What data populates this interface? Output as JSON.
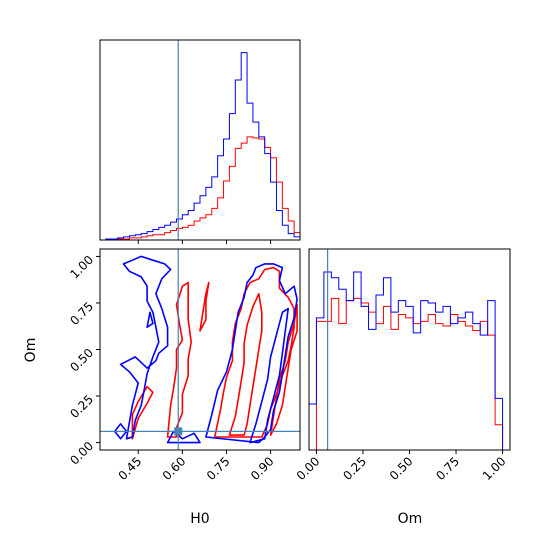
{
  "chart_data": {
    "type": "corner",
    "parameters": [
      "H0",
      "Om"
    ],
    "truths": {
      "H0": 0.586,
      "Om": 0.06
    },
    "colors": {
      "red": "#ff0000",
      "blue": "#0000ff",
      "truth": "#4682b4"
    },
    "axes": {
      "H0": {
        "label": "H0",
        "range": [
          0.32,
          1.0
        ],
        "ticks": [
          "0.45",
          "0.60",
          "0.75",
          "0.90"
        ],
        "tick_values": [
          0.45,
          0.6,
          0.75,
          0.9
        ]
      },
      "Om": {
        "label": "Om",
        "range": [
          -0.04,
          1.04
        ],
        "ticks": [
          "0.00",
          "0.25",
          "0.50",
          "0.75",
          "1.00"
        ],
        "tick_values": [
          0.0,
          0.25,
          0.5,
          0.75,
          1.0
        ]
      }
    },
    "hist_H0": {
      "bin_edges": [
        0.32,
        0.34,
        0.36,
        0.38,
        0.4,
        0.42,
        0.44,
        0.46,
        0.48,
        0.5,
        0.52,
        0.54,
        0.56,
        0.58,
        0.6,
        0.62,
        0.64,
        0.66,
        0.68,
        0.7,
        0.72,
        0.74,
        0.76,
        0.78,
        0.8,
        0.82,
        0.84,
        0.86,
        0.88,
        0.9,
        0.92,
        0.94,
        0.96,
        0.98,
        1.0
      ],
      "ylim": [
        0,
        190
      ],
      "series": [
        {
          "color": "red",
          "counts": [
            0,
            0,
            1,
            1,
            1,
            2,
            2,
            3,
            4,
            5,
            5,
            7,
            9,
            11,
            12,
            14,
            18,
            21,
            24,
            30,
            40,
            56,
            70,
            87,
            92,
            98,
            97,
            96,
            88,
            78,
            55,
            30,
            18,
            7
          ]
        },
        {
          "color": "blue",
          "counts": [
            0,
            1,
            1,
            2,
            3,
            4,
            5,
            6,
            8,
            10,
            12,
            14,
            17,
            20,
            24,
            28,
            35,
            42,
            50,
            60,
            80,
            96,
            120,
            152,
            178,
            130,
            112,
            98,
            82,
            55,
            28,
            14,
            6,
            3
          ]
        }
      ]
    },
    "hist_Om": {
      "bin_edges": [
        -0.04,
        0.0,
        0.04,
        0.08,
        0.12,
        0.16,
        0.2,
        0.24,
        0.28,
        0.32,
        0.36,
        0.4,
        0.44,
        0.48,
        0.52,
        0.56,
        0.6,
        0.64,
        0.68,
        0.72,
        0.76,
        0.8,
        0.84,
        0.88,
        0.92,
        0.96,
        1.0,
        1.04
      ],
      "ylim": [
        0,
        175
      ],
      "series": [
        {
          "color": "red",
          "counts": [
            0,
            112,
            112,
            132,
            110,
            130,
            132,
            128,
            120,
            110,
            125,
            105,
            118,
            115,
            110,
            112,
            118,
            110,
            108,
            118,
            112,
            108,
            104,
            112,
            100,
            22,
            0
          ]
        },
        {
          "color": "blue",
          "counts": [
            40,
            115,
            155,
            150,
            140,
            130,
            155,
            125,
            105,
            135,
            150,
            120,
            130,
            125,
            102,
            130,
            128,
            120,
            125,
            110,
            115,
            120,
            110,
            100,
            130,
            45,
            0
          ]
        }
      ]
    },
    "contours": [
      {
        "color": "red",
        "points": [
          [
            0.43,
            0.02
          ],
          [
            0.45,
            0.13
          ],
          [
            0.48,
            0.21
          ],
          [
            0.5,
            0.27
          ],
          [
            0.48,
            0.3
          ],
          [
            0.45,
            0.22
          ],
          [
            0.43,
            0.15
          ],
          [
            0.43,
            0.02
          ]
        ]
      },
      {
        "color": "red",
        "points": [
          [
            0.55,
            0.03
          ],
          [
            0.56,
            0.2
          ],
          [
            0.57,
            0.29
          ],
          [
            0.58,
            0.4
          ],
          [
            0.58,
            0.5
          ],
          [
            0.6,
            0.55
          ],
          [
            0.59,
            0.64
          ],
          [
            0.58,
            0.74
          ],
          [
            0.6,
            0.84
          ],
          [
            0.62,
            0.86
          ],
          [
            0.62,
            0.76
          ],
          [
            0.62,
            0.66
          ],
          [
            0.63,
            0.54
          ],
          [
            0.62,
            0.45
          ],
          [
            0.62,
            0.36
          ],
          [
            0.6,
            0.26
          ],
          [
            0.6,
            0.16
          ],
          [
            0.58,
            0.08
          ],
          [
            0.58,
            0.03
          ],
          [
            0.55,
            0.03
          ]
        ]
      },
      {
        "color": "red",
        "points": [
          [
            0.66,
            0.6
          ],
          [
            0.67,
            0.7
          ],
          [
            0.68,
            0.8
          ],
          [
            0.69,
            0.86
          ],
          [
            0.68,
            0.76
          ],
          [
            0.68,
            0.66
          ],
          [
            0.66,
            0.6
          ]
        ]
      },
      {
        "color": "red",
        "points": [
          [
            0.71,
            0.03
          ],
          [
            0.73,
            0.18
          ],
          [
            0.74,
            0.27
          ],
          [
            0.75,
            0.35
          ],
          [
            0.77,
            0.44
          ],
          [
            0.77,
            0.54
          ],
          [
            0.78,
            0.64
          ],
          [
            0.8,
            0.72
          ],
          [
            0.81,
            0.8
          ],
          [
            0.83,
            0.86
          ],
          [
            0.86,
            0.88
          ],
          [
            0.88,
            0.93
          ],
          [
            0.91,
            0.94
          ],
          [
            0.93,
            0.92
          ],
          [
            0.93,
            0.83
          ],
          [
            0.96,
            0.78
          ],
          [
            0.98,
            0.72
          ],
          [
            0.98,
            0.62
          ],
          [
            0.97,
            0.52
          ],
          [
            0.96,
            0.44
          ],
          [
            0.94,
            0.36
          ],
          [
            0.92,
            0.26
          ],
          [
            0.9,
            0.18
          ],
          [
            0.89,
            0.1
          ],
          [
            0.87,
            0.03
          ],
          [
            0.71,
            0.03
          ]
        ]
      },
      {
        "color": "red",
        "points": [
          [
            0.76,
            0.04
          ],
          [
            0.78,
            0.14
          ],
          [
            0.79,
            0.23
          ],
          [
            0.8,
            0.33
          ],
          [
            0.81,
            0.43
          ],
          [
            0.81,
            0.53
          ],
          [
            0.82,
            0.63
          ],
          [
            0.84,
            0.73
          ],
          [
            0.86,
            0.8
          ],
          [
            0.87,
            0.7
          ],
          [
            0.87,
            0.6
          ],
          [
            0.86,
            0.5
          ],
          [
            0.85,
            0.4
          ],
          [
            0.84,
            0.3
          ],
          [
            0.83,
            0.2
          ],
          [
            0.82,
            0.1
          ],
          [
            0.81,
            0.04
          ],
          [
            0.76,
            0.04
          ]
        ]
      },
      {
        "color": "red",
        "points": [
          [
            0.9,
            0.04
          ],
          [
            0.91,
            0.14
          ],
          [
            0.92,
            0.24
          ],
          [
            0.93,
            0.34
          ],
          [
            0.95,
            0.44
          ],
          [
            0.96,
            0.54
          ],
          [
            0.98,
            0.64
          ],
          [
            0.99,
            0.74
          ],
          [
            0.99,
            0.6
          ],
          [
            0.97,
            0.5
          ],
          [
            0.96,
            0.4
          ],
          [
            0.95,
            0.3
          ],
          [
            0.94,
            0.2
          ],
          [
            0.92,
            0.1
          ],
          [
            0.9,
            0.04
          ]
        ]
      },
      {
        "color": "blue",
        "points": [
          [
            0.37,
            0.06
          ],
          [
            0.39,
            0.02
          ],
          [
            0.41,
            0.06
          ],
          [
            0.39,
            0.1
          ],
          [
            0.37,
            0.06
          ]
        ]
      },
      {
        "color": "blue",
        "points": [
          [
            0.41,
            0.02
          ],
          [
            0.43,
            0.2
          ],
          [
            0.45,
            0.32
          ],
          [
            0.42,
            0.38
          ],
          [
            0.39,
            0.42
          ],
          [
            0.44,
            0.46
          ],
          [
            0.48,
            0.4
          ],
          [
            0.51,
            0.44
          ],
          [
            0.52,
            0.48
          ],
          [
            0.55,
            0.52
          ],
          [
            0.55,
            0.62
          ],
          [
            0.53,
            0.72
          ],
          [
            0.51,
            0.8
          ],
          [
            0.53,
            0.88
          ],
          [
            0.56,
            0.93
          ],
          [
            0.54,
            0.96
          ],
          [
            0.5,
            0.98
          ],
          [
            0.46,
            1.0
          ],
          [
            0.43,
            0.98
          ],
          [
            0.4,
            0.96
          ],
          [
            0.42,
            0.92
          ],
          [
            0.46,
            0.89
          ],
          [
            0.48,
            0.84
          ],
          [
            0.48,
            0.76
          ],
          [
            0.5,
            0.7
          ],
          [
            0.51,
            0.62
          ],
          [
            0.52,
            0.54
          ],
          [
            0.5,
            0.46
          ],
          [
            0.48,
            0.37
          ],
          [
            0.47,
            0.28
          ],
          [
            0.46,
            0.2
          ],
          [
            0.44,
            0.12
          ],
          [
            0.43,
            0.03
          ],
          [
            0.41,
            0.02
          ]
        ]
      },
      {
        "color": "blue",
        "points": [
          [
            0.48,
            0.62
          ],
          [
            0.49,
            0.7
          ],
          [
            0.5,
            0.64
          ],
          [
            0.48,
            0.62
          ]
        ]
      },
      {
        "color": "blue",
        "points": [
          [
            0.55,
            0.0
          ],
          [
            0.57,
            0.06
          ],
          [
            0.6,
            0.02
          ],
          [
            0.64,
            0.05
          ],
          [
            0.66,
            0.0
          ],
          [
            0.55,
            0.0
          ]
        ]
      },
      {
        "color": "blue",
        "points": [
          [
            0.68,
            0.03
          ],
          [
            0.7,
            0.15
          ],
          [
            0.72,
            0.28
          ],
          [
            0.75,
            0.38
          ],
          [
            0.77,
            0.5
          ],
          [
            0.78,
            0.6
          ],
          [
            0.79,
            0.7
          ],
          [
            0.81,
            0.78
          ],
          [
            0.82,
            0.86
          ],
          [
            0.84,
            0.9
          ],
          [
            0.85,
            0.94
          ],
          [
            0.88,
            0.96
          ],
          [
            0.91,
            0.96
          ],
          [
            0.94,
            0.94
          ],
          [
            0.93,
            0.87
          ],
          [
            0.95,
            0.8
          ],
          [
            0.98,
            0.84
          ],
          [
            0.99,
            0.77
          ],
          [
            0.98,
            0.67
          ],
          [
            0.96,
            0.57
          ],
          [
            0.95,
            0.47
          ],
          [
            0.94,
            0.37
          ],
          [
            0.93,
            0.27
          ],
          [
            0.91,
            0.17
          ],
          [
            0.9,
            0.07
          ],
          [
            0.88,
            0.03
          ],
          [
            0.86,
            0.0
          ],
          [
            0.68,
            0.03
          ]
        ]
      },
      {
        "color": "blue",
        "points": [
          [
            0.83,
            0.0
          ],
          [
            0.85,
            0.1
          ],
          [
            0.87,
            0.22
          ],
          [
            0.89,
            0.34
          ],
          [
            0.9,
            0.46
          ],
          [
            0.92,
            0.58
          ],
          [
            0.94,
            0.7
          ],
          [
            0.96,
            0.72
          ],
          [
            0.95,
            0.6
          ],
          [
            0.94,
            0.48
          ],
          [
            0.93,
            0.36
          ],
          [
            0.91,
            0.24
          ],
          [
            0.89,
            0.12
          ],
          [
            0.88,
            0.02
          ],
          [
            0.83,
            0.0
          ]
        ]
      }
    ]
  }
}
